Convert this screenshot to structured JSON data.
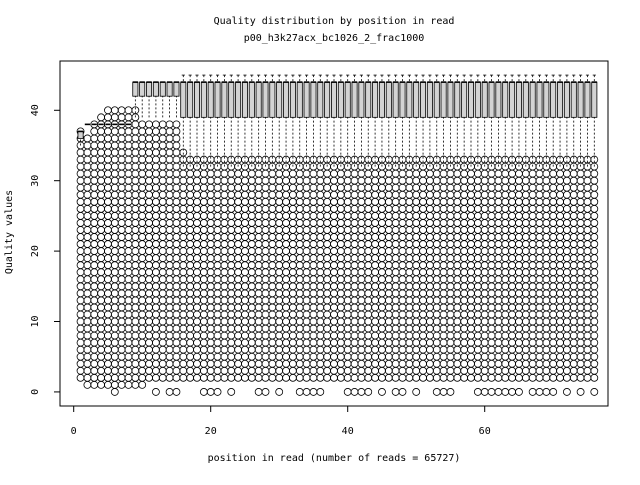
{
  "chart_data": {
    "type": "box",
    "title": "Quality distribution by position in read",
    "subtitle": "p00_h3k27acx_bc1026_2_frac1000",
    "xlabel": "position in read (number of reads = 65727)",
    "ylabel": "Quality values",
    "x_ticks": [
      "0",
      "20",
      "40",
      "60"
    ],
    "y_ticks": [
      "0",
      "10",
      "20",
      "30",
      "40"
    ],
    "xlim": [
      -2,
      78
    ],
    "ylim": [
      -2,
      47
    ],
    "positions": {
      "start": 1,
      "end": 76
    },
    "outlier_band_top_by_position": [
      37,
      36,
      38,
      39,
      40,
      40,
      40,
      40,
      40,
      38,
      38,
      38,
      38,
      38,
      38,
      34,
      33,
      33,
      33,
      33,
      33,
      33,
      33,
      33,
      33,
      33,
      33,
      33,
      33,
      33,
      33,
      33,
      33,
      33,
      33,
      33,
      33,
      33,
      33,
      33,
      33,
      33,
      33,
      33,
      33,
      33,
      33,
      33,
      33,
      33,
      33,
      33,
      33,
      33,
      33,
      33,
      33,
      33,
      33,
      33,
      33,
      33,
      33,
      33,
      33,
      33,
      33,
      33,
      33,
      33,
      33,
      33,
      33,
      33,
      33,
      33
    ],
    "outlier_band_bottom_by_position": [
      2,
      1,
      1,
      1,
      1,
      1,
      1,
      1,
      1,
      1,
      2,
      2,
      2,
      2,
      2,
      2,
      2,
      2,
      2,
      2,
      2,
      2,
      2,
      2,
      2,
      2,
      2,
      2,
      2,
      2,
      2,
      2,
      2,
      2,
      2,
      2,
      2,
      2,
      2,
      2,
      2,
      2,
      2,
      2,
      2,
      2,
      2,
      2,
      2,
      2,
      2,
      2,
      2,
      2,
      2,
      2,
      2,
      2,
      2,
      2,
      2,
      2,
      2,
      2,
      2,
      2,
      2,
      2,
      2,
      2,
      2,
      2,
      2,
      2,
      2,
      2
    ],
    "boxes": [
      {
        "positions": [
          1,
          1
        ],
        "lower_whisker": 35,
        "q1": 36,
        "median": 37,
        "q3": 37,
        "upper_whisker": 37
      },
      {
        "positions": [
          2,
          8
        ],
        "lower_whisker": 38,
        "q1": 38,
        "median": 38,
        "q3": 38,
        "upper_whisker": 38
      },
      {
        "positions": [
          9,
          15
        ],
        "lower_whisker": 39,
        "q1": 42,
        "median": 44,
        "q3": 44,
        "upper_whisker": 44
      },
      {
        "positions": [
          16,
          76
        ],
        "lower_whisker": 32,
        "q1": 39,
        "median": 44,
        "q3": 44,
        "upper_whisker": 45
      }
    ],
    "zero_outlier_positions": [
      6,
      12,
      14,
      15,
      19,
      20,
      21,
      23,
      27,
      28,
      30,
      33,
      34,
      35,
      36,
      40,
      41,
      42,
      43,
      45,
      47,
      48,
      50,
      53,
      54,
      55,
      59,
      60,
      61,
      62,
      63,
      64,
      65,
      67,
      68,
      69,
      70,
      72,
      74,
      76
    ],
    "grid": false,
    "legend": "none"
  }
}
